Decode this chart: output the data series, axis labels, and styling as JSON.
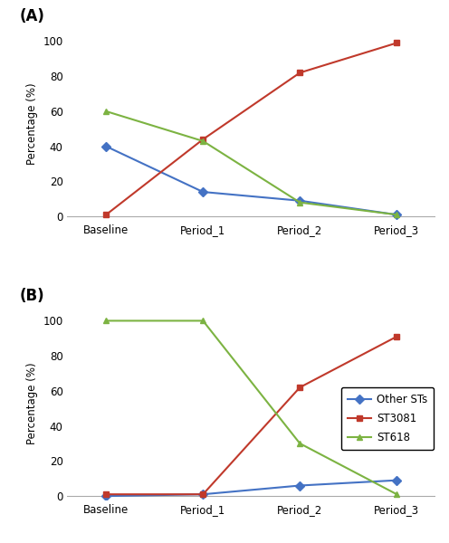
{
  "x_labels": [
    "Baseline",
    "Period_1",
    "Period_2",
    "Period_3"
  ],
  "panel_A": {
    "label": "(A)",
    "series": {
      "Other STs": {
        "values": [
          40,
          14,
          9,
          1
        ],
        "color": "#4472C4",
        "marker": "D"
      },
      "ST3081": {
        "values": [
          1,
          44,
          82,
          99
        ],
        "color": "#C0392B",
        "marker": "s"
      },
      "ST618": {
        "values": [
          60,
          43,
          8,
          1
        ],
        "color": "#7CB342",
        "marker": "^"
      }
    }
  },
  "panel_B": {
    "label": "(B)",
    "series": {
      "Other STs": {
        "values": [
          0,
          1,
          6,
          9
        ],
        "color": "#4472C4",
        "marker": "D"
      },
      "ST3081": {
        "values": [
          1,
          1,
          62,
          91
        ],
        "color": "#C0392B",
        "marker": "s"
      },
      "ST618": {
        "values": [
          100,
          100,
          30,
          1
        ],
        "color": "#7CB342",
        "marker": "^"
      }
    }
  },
  "ylabel": "Percentage (%)",
  "ylim": [
    -2,
    108
  ],
  "yticks": [
    0,
    20,
    40,
    60,
    80,
    100
  ],
  "legend_labels": [
    "Other STs",
    "ST3081",
    "ST618"
  ],
  "background_color": "#ffffff"
}
